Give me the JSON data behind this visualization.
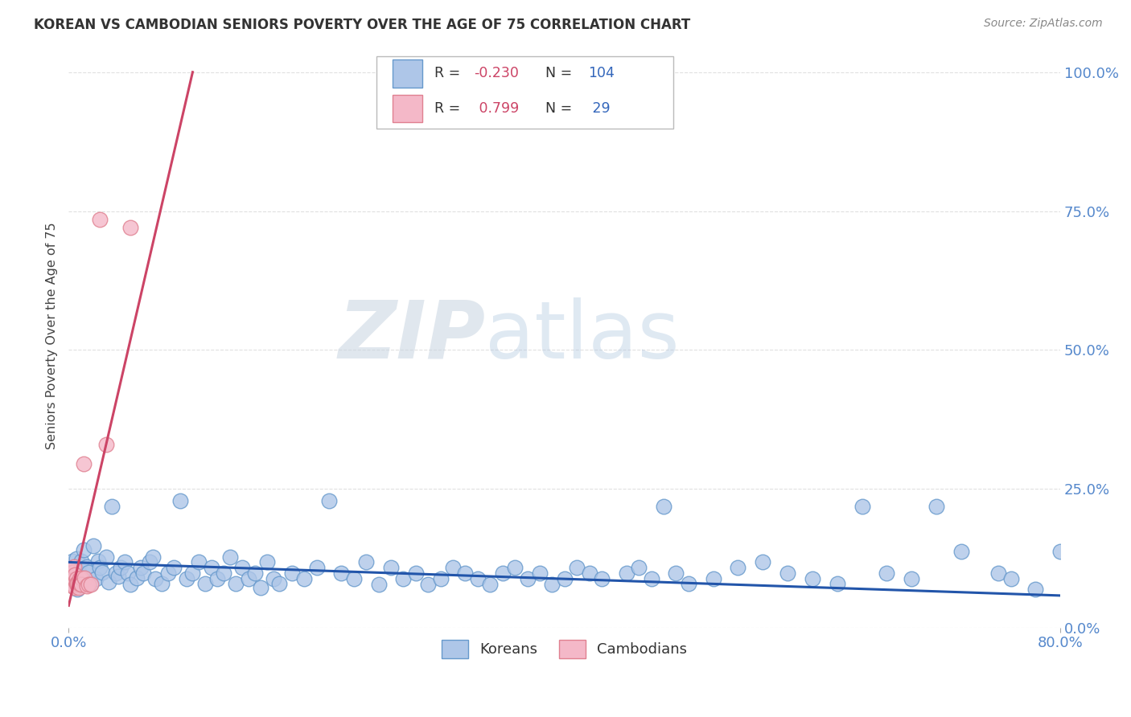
{
  "title": "KOREAN VS CAMBODIAN SENIORS POVERTY OVER THE AGE OF 75 CORRELATION CHART",
  "source": "Source: ZipAtlas.com",
  "ylabel": "Seniors Poverty Over the Age of 75",
  "watermark_zip": "ZIP",
  "watermark_atlas": "atlas",
  "korean_scatter_x": [
    0.001,
    0.003,
    0.004,
    0.005,
    0.006,
    0.007,
    0.008,
    0.009,
    0.01,
    0.012,
    0.013,
    0.015,
    0.016,
    0.018,
    0.02,
    0.022,
    0.024,
    0.025,
    0.027,
    0.03,
    0.032,
    0.035,
    0.038,
    0.04,
    0.042,
    0.045,
    0.048,
    0.05,
    0.055,
    0.058,
    0.06,
    0.065,
    0.068,
    0.07,
    0.075,
    0.08,
    0.085,
    0.09,
    0.095,
    0.1,
    0.105,
    0.11,
    0.115,
    0.12,
    0.125,
    0.13,
    0.135,
    0.14,
    0.145,
    0.15,
    0.155,
    0.16,
    0.165,
    0.17,
    0.18,
    0.19,
    0.2,
    0.21,
    0.22,
    0.23,
    0.24,
    0.25,
    0.26,
    0.27,
    0.28,
    0.29,
    0.3,
    0.31,
    0.32,
    0.33,
    0.34,
    0.35,
    0.36,
    0.37,
    0.38,
    0.39,
    0.4,
    0.41,
    0.42,
    0.43,
    0.45,
    0.46,
    0.47,
    0.48,
    0.49,
    0.5,
    0.52,
    0.54,
    0.56,
    0.58,
    0.6,
    0.62,
    0.64,
    0.66,
    0.68,
    0.7,
    0.72,
    0.75,
    0.76,
    0.78,
    0.8
  ],
  "korean_scatter_y": [
    0.09,
    0.12,
    0.085,
    0.11,
    0.125,
    0.07,
    0.1,
    0.08,
    0.12,
    0.14,
    0.09,
    0.11,
    0.1,
    0.08,
    0.148,
    0.088,
    0.12,
    0.108,
    0.1,
    0.128,
    0.082,
    0.218,
    0.098,
    0.092,
    0.108,
    0.118,
    0.098,
    0.078,
    0.09,
    0.108,
    0.098,
    0.118,
    0.128,
    0.088,
    0.08,
    0.098,
    0.108,
    0.228,
    0.088,
    0.098,
    0.118,
    0.08,
    0.108,
    0.088,
    0.098,
    0.128,
    0.08,
    0.108,
    0.088,
    0.098,
    0.072,
    0.118,
    0.088,
    0.08,
    0.098,
    0.088,
    0.108,
    0.228,
    0.098,
    0.088,
    0.118,
    0.078,
    0.108,
    0.088,
    0.098,
    0.078,
    0.088,
    0.108,
    0.098,
    0.088,
    0.078,
    0.098,
    0.108,
    0.088,
    0.098,
    0.078,
    0.088,
    0.108,
    0.098,
    0.088,
    0.098,
    0.108,
    0.088,
    0.218,
    0.098,
    0.08,
    0.088,
    0.108,
    0.118,
    0.098,
    0.088,
    0.08,
    0.218,
    0.098,
    0.088,
    0.218,
    0.138,
    0.098,
    0.088,
    0.07,
    0.138
  ],
  "cambodian_scatter_x": [
    0.001,
    0.001,
    0.001,
    0.002,
    0.002,
    0.003,
    0.003,
    0.004,
    0.004,
    0.005,
    0.005,
    0.006,
    0.006,
    0.007,
    0.007,
    0.008,
    0.008,
    0.009,
    0.009,
    0.01,
    0.01,
    0.012,
    0.013,
    0.015,
    0.016,
    0.018,
    0.025,
    0.03,
    0.05
  ],
  "cambodian_scatter_y": [
    0.095,
    0.085,
    0.105,
    0.09,
    0.08,
    0.1,
    0.075,
    0.088,
    0.11,
    0.095,
    0.072,
    0.088,
    0.08,
    0.078,
    0.08,
    0.078,
    0.072,
    0.088,
    0.08,
    0.09,
    0.078,
    0.295,
    0.09,
    0.075,
    0.078,
    0.078,
    0.735,
    0.33,
    0.72
  ],
  "korean_trend_x": [
    0.0,
    0.8
  ],
  "korean_trend_y": [
    0.118,
    0.058
  ],
  "cambodian_trend_x": [
    0.0,
    0.1
  ],
  "cambodian_trend_y": [
    0.04,
    1.0
  ],
  "xlim": [
    0.0,
    0.8
  ],
  "ylim": [
    0.0,
    1.05
  ],
  "ytick_vals": [
    0.0,
    0.25,
    0.5,
    0.75,
    1.0
  ],
  "ytick_labels": [
    "0.0%",
    "25.0%",
    "50.0%",
    "75.0%",
    "100.0%"
  ],
  "xtick_vals": [
    0.0,
    0.8
  ],
  "xtick_labels": [
    "0.0%",
    "80.0%"
  ],
  "korean_fill": "#aec6e8",
  "korean_edge": "#6699cc",
  "cambodian_fill": "#f4b8c8",
  "cambodian_edge": "#e08090",
  "korean_line": "#2255aa",
  "cambodian_line": "#cc4466",
  "axis_tick_color": "#5588cc",
  "grid_color": "#cccccc",
  "bg": "#ffffff",
  "legend_R_color": "#cc4466",
  "legend_N_color": "#3366bb",
  "legend_label_color": "#333333"
}
